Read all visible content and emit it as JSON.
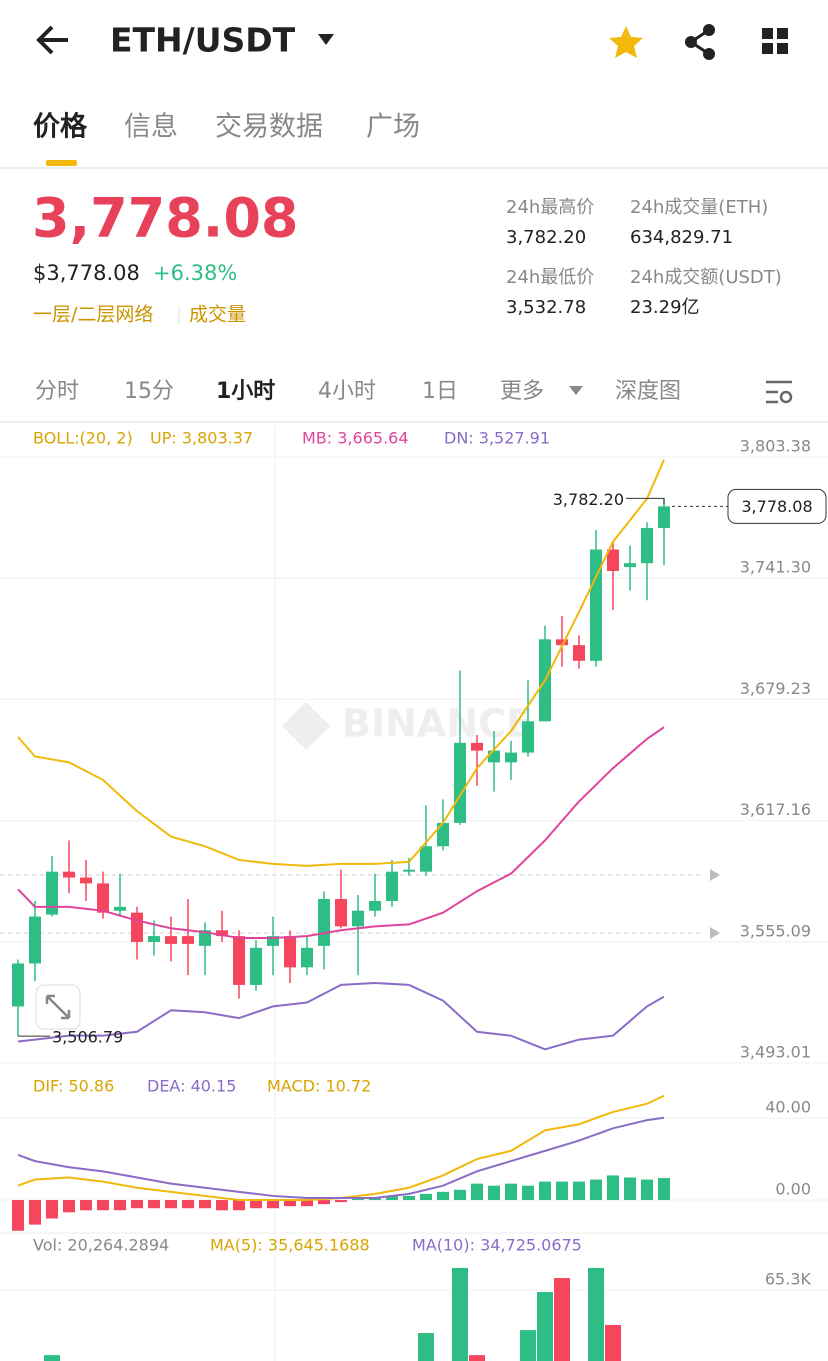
{
  "header": {
    "title": "ETH/USDT"
  },
  "tabs": [
    "价格",
    "信息",
    "交易数据",
    "广场"
  ],
  "price": {
    "last": "3,778.08",
    "usd": "$3,778.08",
    "change": "+6.38%",
    "tags": [
      "一层/二层网络",
      "成交量"
    ]
  },
  "stats": [
    {
      "label": "24h最高价",
      "value": "3,782.20"
    },
    {
      "label": "24h成交量(ETH)",
      "value": "634,829.71"
    },
    {
      "label": "24h最低价",
      "value": "3,532.78"
    },
    {
      "label": "24h成交额(USDT)",
      "value": "23.29亿"
    }
  ],
  "intervals": [
    "分时",
    "15分",
    "1小时",
    "4小时",
    "1日",
    "更多",
    "深度图"
  ],
  "watermark": "BINANCE",
  "chart_data": [
    {
      "type": "candlestick",
      "legend": [
        "BOLL:(20, 2)",
        "UP: 3,803.37",
        "MB: 3,665.64",
        "DN: 3,527.91"
      ],
      "legend_colors": [
        "#d9a400",
        "#d9a400",
        "#e0449a",
        "#8a6cc7"
      ],
      "up_color": "#2ebd85",
      "down_color": "#f6465d",
      "open": [
        3522,
        3544,
        3569,
        3591,
        3588,
        3585,
        3571,
        3570,
        3555,
        3558,
        3558,
        3553,
        3561,
        3558,
        3533,
        3553,
        3558,
        3542,
        3553,
        3577,
        3563,
        3571,
        3576,
        3591,
        3591,
        3604,
        3616,
        3657,
        3647,
        3647,
        3652,
        3668,
        3710,
        3707,
        3699,
        3756,
        3747,
        3749,
        3767
      ],
      "high": [
        3546,
        3576,
        3599,
        3607,
        3597,
        3591,
        3590,
        3573,
        3566,
        3568,
        3577,
        3565,
        3571,
        3561,
        3556,
        3568,
        3561,
        3558,
        3581,
        3592,
        3579,
        3590,
        3597,
        3598,
        3625,
        3628,
        3694,
        3661,
        3663,
        3658,
        3689,
        3717,
        3722,
        3712,
        3766,
        3760,
        3758,
        3770,
        3782.2
      ],
      "low": [
        3506.79,
        3535,
        3568,
        3580,
        3576,
        3567,
        3568,
        3546,
        3548,
        3545,
        3538,
        3538,
        3555,
        3526,
        3530,
        3538,
        3534,
        3538,
        3541,
        3562,
        3538,
        3568,
        3573,
        3589,
        3589,
        3602,
        3615,
        3635,
        3632,
        3638,
        3650,
        3668,
        3696,
        3695,
        3696,
        3725,
        3735,
        3730,
        3748
      ],
      "close": [
        3544,
        3568,
        3591,
        3588,
        3585,
        3570,
        3573,
        3555,
        3558,
        3554,
        3554,
        3561,
        3558,
        3533,
        3552,
        3558,
        3542,
        3552,
        3577,
        3563,
        3571,
        3576,
        3591,
        3592,
        3604,
        3616,
        3657,
        3653,
        3653,
        3652,
        3668,
        3710,
        3707,
        3699,
        3756,
        3745,
        3749,
        3767,
        3778.08
      ],
      "series": [
        {
          "color": "#f0b90b",
          "x": [
            0,
            1,
            3,
            5,
            7,
            9,
            11,
            13,
            15,
            17,
            19,
            21,
            23,
            25,
            27,
            29,
            31,
            33,
            35,
            37,
            38
          ],
          "values": [
            3660,
            3650,
            3647,
            3638,
            3622,
            3609,
            3604,
            3597,
            3595,
            3594,
            3595,
            3595,
            3596,
            3616,
            3644,
            3663,
            3689,
            3724,
            3760,
            3782,
            3802
          ]
        },
        {
          "color": "#e0449a",
          "x": [
            0,
            1,
            3,
            5,
            7,
            9,
            11,
            13,
            15,
            17,
            19,
            21,
            23,
            25,
            27,
            29,
            31,
            33,
            35,
            37,
            38
          ],
          "values": [
            3582,
            3573,
            3573,
            3571,
            3566,
            3562,
            3560,
            3557,
            3557,
            3558,
            3561,
            3563,
            3564,
            3570,
            3581,
            3590,
            3607,
            3627,
            3644,
            3659,
            3665
          ]
        },
        {
          "color": "#8a6cc7",
          "x": [
            0,
            1,
            3,
            5,
            7,
            9,
            11,
            13,
            15,
            17,
            19,
            21,
            23,
            25,
            27,
            29,
            31,
            33,
            35,
            37,
            38
          ],
          "values": [
            3504,
            3505,
            3507,
            3507,
            3509,
            3520,
            3519,
            3516,
            3522,
            3524,
            3533,
            3534,
            3533,
            3525,
            3509,
            3507,
            3500,
            3505,
            3507,
            3522,
            3527
          ]
        }
      ],
      "annotations": [
        {
          "value": 3782.2,
          "label": "3,782.20"
        },
        {
          "value": 3506.79,
          "label": "3,506.79"
        }
      ],
      "last": {
        "value": 3778.08,
        "label": "3,778.08"
      },
      "ylim": [
        3493.01,
        3819.77
      ],
      "yticks": [
        {
          "value": 3803.38,
          "label": "3,803.38"
        },
        {
          "value": 3741.3,
          "label": "3,741.30"
        },
        {
          "value": 3679.23,
          "label": "3,679.23"
        },
        {
          "value": 3617.16,
          "label": "3,617.16"
        },
        {
          "value": 3555.09,
          "label": "3,555.09"
        },
        {
          "value": 3493.01,
          "label": "3,493.01"
        }
      ]
    },
    {
      "type": "macd",
      "legend": [
        "DIF: 50.86",
        "DEA: 40.15",
        "MACD: 10.72"
      ],
      "legend_colors": [
        "#d9a400",
        "#8a6cc7",
        "#d9a400"
      ],
      "up_color": "#2ebd85",
      "down_color": "#f6465d",
      "values": [
        -15,
        -12,
        -9,
        -6,
        -5,
        -5,
        -5,
        -4,
        -4,
        -4,
        -4,
        -4,
        -5,
        -5,
        -4,
        -4,
        -3,
        -3,
        -2,
        -1,
        1,
        1,
        2,
        2,
        3,
        4,
        5,
        8,
        7,
        8,
        7,
        9,
        9,
        9,
        10,
        12,
        11,
        10,
        10.72
      ],
      "series": [
        {
          "color": "#f0b90b",
          "x": [
            0,
            1,
            3,
            5,
            7,
            9,
            11,
            13,
            15,
            17,
            19,
            21,
            23,
            25,
            27,
            29,
            31,
            33,
            35,
            37,
            38
          ],
          "values": [
            7,
            10,
            11,
            9,
            6,
            4,
            2,
            0,
            0,
            0,
            1,
            3,
            6,
            12,
            20,
            24,
            34,
            37,
            43,
            47,
            50.86
          ]
        },
        {
          "color": "#8a6cc7",
          "x": [
            0,
            1,
            3,
            5,
            7,
            9,
            11,
            13,
            15,
            17,
            19,
            21,
            23,
            25,
            27,
            29,
            31,
            33,
            35,
            37,
            38
          ],
          "values": [
            22,
            19,
            16,
            14,
            11,
            8,
            6,
            4,
            2,
            1,
            1,
            1,
            3,
            7,
            14,
            19,
            24,
            29,
            35,
            39,
            40.15
          ]
        }
      ],
      "ylim": [
        -15.6,
        65.9
      ],
      "yticks": [
        {
          "value": 40,
          "label": "40.00"
        },
        {
          "value": 0,
          "label": "0.00"
        }
      ]
    },
    {
      "type": "volume",
      "legend": [
        "Vol: 20,264.2894",
        "MA(5): 35,645.1688",
        "MA(10): 34,725.0675"
      ],
      "legend_colors": [
        "#888888",
        "#d9a400",
        "#8a6cc7"
      ],
      "x": [
        2,
        24,
        26,
        27,
        30,
        31,
        32,
        34,
        35
      ],
      "values": [
        29900,
        41900,
        77300,
        29900,
        43500,
        64200,
        71800,
        77300,
        46300
      ],
      "colors": [
        "#2ebd85",
        "#2ebd85",
        "#2ebd85",
        "#f6465d",
        "#2ebd85",
        "#2ebd85",
        "#f6465d",
        "#2ebd85",
        "#f6465d"
      ],
      "ylim": [
        26700,
        95200
      ],
      "yticks": [
        {
          "value": 65300,
          "label": "65.3K"
        }
      ]
    }
  ]
}
